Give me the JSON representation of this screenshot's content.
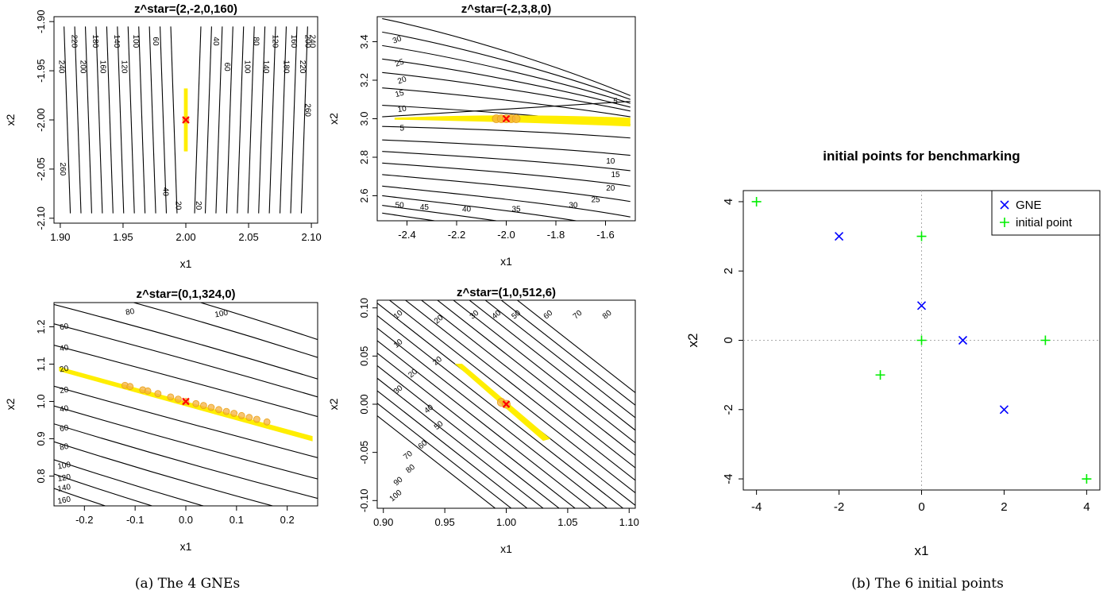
{
  "captions": {
    "a": "(a) The 4 GNEs",
    "b": "(b) The 6 initial points"
  },
  "chart_data": [
    {
      "id": "p1",
      "type": "contour",
      "title": "z^star=(2,-2,0,160)",
      "xlabel": "x1",
      "ylabel": "x2",
      "xlim": [
        1.895,
        2.105
      ],
      "ylim": [
        -2.105,
        -1.895
      ],
      "xticks": [
        1.9,
        1.95,
        2.0,
        2.05,
        2.1
      ],
      "xtick_labels": [
        "1.90",
        "1.95",
        "2.00",
        "2.05",
        "2.10"
      ],
      "yticks": [
        -2.1,
        -2.05,
        -2.0,
        -1.95,
        -1.9
      ],
      "ytick_labels": [
        "-2.10",
        "-2.05",
        "-2.00",
        "-1.95",
        "-1.90"
      ],
      "contour_labels": [
        {
          "text": "220",
          "x": 1.911,
          "y": -1.92,
          "rot": 90
        },
        {
          "text": "180",
          "x": 1.928,
          "y": -1.92,
          "rot": 90
        },
        {
          "text": "140",
          "x": 1.945,
          "y": -1.92,
          "rot": 90
        },
        {
          "text": "100",
          "x": 1.96,
          "y": -1.92,
          "rot": 90
        },
        {
          "text": "60",
          "x": 1.976,
          "y": -1.92,
          "rot": 90
        },
        {
          "text": "40",
          "x": 2.024,
          "y": -1.92,
          "rot": 90
        },
        {
          "text": "80",
          "x": 2.056,
          "y": -1.92,
          "rot": 90
        },
        {
          "text": "120",
          "x": 2.071,
          "y": -1.92,
          "rot": 90
        },
        {
          "text": "160",
          "x": 2.086,
          "y": -1.92,
          "rot": 90
        },
        {
          "text": "200",
          "x": 2.097,
          "y": -1.92,
          "rot": 90
        },
        {
          "text": "240",
          "x": 2.101,
          "y": -1.92,
          "rot": 90
        },
        {
          "text": "240",
          "x": 1.901,
          "y": -1.946,
          "rot": 90
        },
        {
          "text": "200",
          "x": 1.918,
          "y": -1.946,
          "rot": 90
        },
        {
          "text": "160",
          "x": 1.934,
          "y": -1.946,
          "rot": 90
        },
        {
          "text": "120",
          "x": 1.951,
          "y": -1.946,
          "rot": 90
        },
        {
          "text": "60",
          "x": 2.033,
          "y": -1.946,
          "rot": 90
        },
        {
          "text": "100",
          "x": 2.049,
          "y": -1.946,
          "rot": 90
        },
        {
          "text": "140",
          "x": 2.064,
          "y": -1.946,
          "rot": 90
        },
        {
          "text": "180",
          "x": 2.08,
          "y": -1.946,
          "rot": 90
        },
        {
          "text": "220",
          "x": 2.093,
          "y": -1.946,
          "rot": 90
        },
        {
          "text": "260",
          "x": 2.097,
          "y": -1.99,
          "rot": 90
        },
        {
          "text": "260",
          "x": 1.902,
          "y": -2.05,
          "rot": 90
        },
        {
          "text": "40",
          "x": 1.984,
          "y": -2.073,
          "rot": 90
        },
        {
          "text": "20",
          "x": 1.994,
          "y": -2.087,
          "rot": 90
        },
        {
          "text": "20",
          "x": 2.01,
          "y": -2.087,
          "rot": 90
        }
      ],
      "gne": {
        "x": 2.0,
        "y": -2.0
      },
      "initial_points": [
        {
          "x": 2.0,
          "y": -2.0
        }
      ]
    },
    {
      "id": "p2",
      "type": "contour",
      "title": "z^star=(-2,3,8,0)",
      "xlabel": "x1",
      "ylabel": "x2",
      "xlim": [
        -2.52,
        -1.48
      ],
      "ylim": [
        2.47,
        3.53
      ],
      "xticks": [
        -2.4,
        -2.2,
        -2.0,
        -1.8,
        -1.6
      ],
      "xtick_labels": [
        "-2.4",
        "-2.2",
        "-2.0",
        "-1.8",
        "-1.6"
      ],
      "yticks": [
        2.6,
        2.8,
        3.0,
        3.2,
        3.4
      ],
      "ytick_labels": [
        "2.6",
        "2.8",
        "3.0",
        "3.2",
        "3.4"
      ],
      "contour_labels": [
        {
          "text": "30",
          "x": -2.44,
          "y": 3.41,
          "rot": -20
        },
        {
          "text": "25",
          "x": -2.43,
          "y": 3.29,
          "rot": -20
        },
        {
          "text": "20",
          "x": -2.42,
          "y": 3.2,
          "rot": -20
        },
        {
          "text": "15",
          "x": -2.43,
          "y": 3.13,
          "rot": -15
        },
        {
          "text": "10",
          "x": -2.42,
          "y": 3.05,
          "rot": -10
        },
        {
          "text": "5",
          "x": -1.56,
          "y": 3.09,
          "rot": 0
        },
        {
          "text": "5",
          "x": -2.42,
          "y": 2.95,
          "rot": 0
        },
        {
          "text": "10",
          "x": -1.58,
          "y": 2.78,
          "rot": 0
        },
        {
          "text": "15",
          "x": -1.56,
          "y": 2.71,
          "rot": 0
        },
        {
          "text": "20",
          "x": -1.58,
          "y": 2.64,
          "rot": 0
        },
        {
          "text": "25",
          "x": -1.64,
          "y": 2.58,
          "rot": 0
        },
        {
          "text": "30",
          "x": -1.73,
          "y": 2.55,
          "rot": 0
        },
        {
          "text": "35",
          "x": -1.96,
          "y": 2.53,
          "rot": 0
        },
        {
          "text": "40",
          "x": -2.16,
          "y": 2.53,
          "rot": 0
        },
        {
          "text": "45",
          "x": -2.33,
          "y": 2.54,
          "rot": 0
        },
        {
          "text": "50",
          "x": -2.43,
          "y": 2.55,
          "rot": 0
        }
      ],
      "gne": {
        "x": -2.0,
        "y": 3.0
      },
      "initial_points": [
        {
          "x": -2.04,
          "y": 3.0
        },
        {
          "x": -2.02,
          "y": 3.0
        },
        {
          "x": -2.0,
          "y": 3.0
        },
        {
          "x": -1.98,
          "y": 3.0
        },
        {
          "x": -1.96,
          "y": 3.0
        }
      ]
    },
    {
      "id": "p3",
      "type": "contour",
      "title": "z^star=(0,1,324,0)",
      "xlabel": "x1",
      "ylabel": "x2",
      "xlim": [
        -0.26,
        0.26
      ],
      "ylim": [
        0.72,
        1.265
      ],
      "xticks": [
        -0.2,
        -0.1,
        0.0,
        0.1,
        0.2
      ],
      "xtick_labels": [
        "-0.2",
        "-0.1",
        "0.0",
        "0.1",
        "0.2"
      ],
      "yticks": [
        0.8,
        0.9,
        1.0,
        1.1,
        1.2
      ],
      "ytick_labels": [
        "0.8",
        "0.9",
        "1.0",
        "1.1",
        "1.2"
      ],
      "contour_labels": [
        {
          "text": "60",
          "x": -0.24,
          "y": 1.2,
          "rot": -10
        },
        {
          "text": "80",
          "x": -0.11,
          "y": 1.24,
          "rot": -10
        },
        {
          "text": "100",
          "x": 0.07,
          "y": 1.235,
          "rot": -10
        },
        {
          "text": "40",
          "x": -0.24,
          "y": 1.143,
          "rot": -10
        },
        {
          "text": "20",
          "x": -0.24,
          "y": 1.087,
          "rot": -10
        },
        {
          "text": "20",
          "x": -0.24,
          "y": 1.03,
          "rot": -10
        },
        {
          "text": "40",
          "x": -0.24,
          "y": 0.98,
          "rot": -10
        },
        {
          "text": "60",
          "x": -0.24,
          "y": 0.928,
          "rot": -10
        },
        {
          "text": "80",
          "x": -0.24,
          "y": 0.878,
          "rot": -10
        },
        {
          "text": "100",
          "x": -0.24,
          "y": 0.828,
          "rot": -10
        },
        {
          "text": "120",
          "x": -0.24,
          "y": 0.795,
          "rot": -10
        },
        {
          "text": "140",
          "x": -0.24,
          "y": 0.768,
          "rot": -10
        },
        {
          "text": "160",
          "x": -0.24,
          "y": 0.735,
          "rot": -10
        }
      ],
      "gne": {
        "x": 0.0,
        "y": 1.0
      },
      "initial_points": [
        {
          "x": -0.12,
          "y": 1.043
        },
        {
          "x": -0.11,
          "y": 1.04
        },
        {
          "x": -0.085,
          "y": 1.031
        },
        {
          "x": -0.075,
          "y": 1.028
        },
        {
          "x": -0.055,
          "y": 1.021
        },
        {
          "x": -0.03,
          "y": 1.012
        },
        {
          "x": -0.015,
          "y": 1.006
        },
        {
          "x": 0.0,
          "y": 1.0
        },
        {
          "x": 0.02,
          "y": 0.994
        },
        {
          "x": 0.035,
          "y": 0.989
        },
        {
          "x": 0.05,
          "y": 0.984
        },
        {
          "x": 0.065,
          "y": 0.978
        },
        {
          "x": 0.08,
          "y": 0.973
        },
        {
          "x": 0.095,
          "y": 0.968
        },
        {
          "x": 0.11,
          "y": 0.962
        },
        {
          "x": 0.125,
          "y": 0.957
        },
        {
          "x": 0.14,
          "y": 0.952
        },
        {
          "x": 0.16,
          "y": 0.945
        }
      ]
    },
    {
      "id": "p4",
      "type": "contour",
      "title": "z^star=(1,0,512,6)",
      "xlabel": "x1",
      "ylabel": "x2",
      "xlim": [
        0.895,
        1.105
      ],
      "ylim": [
        -0.108,
        0.108
      ],
      "xticks": [
        0.9,
        0.95,
        1.0,
        1.05,
        1.1
      ],
      "xtick_labels": [
        "0.90",
        "0.95",
        "1.00",
        "1.05",
        "1.10"
      ],
      "yticks": [
        -0.1,
        -0.05,
        0.0,
        0.05,
        0.1
      ],
      "ytick_labels": [
        "-0.10",
        "-0.05",
        "0.00",
        "0.05",
        "0.10"
      ],
      "contour_labels": [
        {
          "text": "10",
          "x": 0.912,
          "y": 0.093,
          "rot": -40
        },
        {
          "text": "20",
          "x": 0.945,
          "y": 0.088,
          "rot": -40
        },
        {
          "text": "30",
          "x": 0.974,
          "y": 0.093,
          "rot": -40
        },
        {
          "text": "40",
          "x": 0.992,
          "y": 0.093,
          "rot": -40
        },
        {
          "text": "50",
          "x": 1.008,
          "y": 0.093,
          "rot": -40
        },
        {
          "text": "60",
          "x": 1.034,
          "y": 0.093,
          "rot": -40
        },
        {
          "text": "70",
          "x": 1.058,
          "y": 0.093,
          "rot": -40
        },
        {
          "text": "80",
          "x": 1.082,
          "y": 0.093,
          "rot": -40
        },
        {
          "text": "10",
          "x": 0.912,
          "y": 0.063,
          "rot": -40
        },
        {
          "text": "20",
          "x": 0.944,
          "y": 0.045,
          "rot": -40
        },
        {
          "text": "20",
          "x": 0.924,
          "y": 0.032,
          "rot": -40
        },
        {
          "text": "30",
          "x": 0.912,
          "y": 0.015,
          "rot": -40
        },
        {
          "text": "40",
          "x": 0.937,
          "y": -0.005,
          "rot": -40
        },
        {
          "text": "50",
          "x": 0.945,
          "y": -0.022,
          "rot": -40
        },
        {
          "text": "60",
          "x": 0.932,
          "y": -0.042,
          "rot": -40
        },
        {
          "text": "70",
          "x": 0.92,
          "y": -0.053,
          "rot": -40
        },
        {
          "text": "80",
          "x": 0.922,
          "y": -0.067,
          "rot": -40
        },
        {
          "text": "90",
          "x": 0.912,
          "y": -0.08,
          "rot": -40
        },
        {
          "text": "100",
          "x": 0.91,
          "y": -0.095,
          "rot": -40
        }
      ],
      "gne": {
        "x": 1.0,
        "y": 0.0
      },
      "initial_points": [
        {
          "x": 0.996,
          "y": 0.002
        },
        {
          "x": 1.0,
          "y": 0.0
        }
      ]
    },
    {
      "id": "p5",
      "type": "scatter",
      "title": "initial points for benchmarking",
      "xlabel": "x1",
      "ylabel": "x2",
      "xlim": [
        -4.32,
        4.32
      ],
      "ylim": [
        -4.32,
        4.32
      ],
      "xticks": [
        -4,
        -2,
        0,
        2,
        4
      ],
      "xtick_labels": [
        "-4",
        "-2",
        "0",
        "2",
        "4"
      ],
      "yticks": [
        -4,
        -2,
        0,
        2,
        4
      ],
      "ytick_labels": [
        "-4",
        "-2",
        "0",
        "2",
        "4"
      ],
      "reference_lines": {
        "x": 0,
        "y": 0
      },
      "legend_position": "top-right",
      "series": [
        {
          "name": "GNE",
          "marker": "x",
          "color": "#0000ff",
          "points": [
            {
              "x": -2,
              "y": 3
            },
            {
              "x": 0,
              "y": 1
            },
            {
              "x": 1,
              "y": 0
            },
            {
              "x": 2,
              "y": -2
            }
          ]
        },
        {
          "name": "initial point",
          "marker": "+",
          "color": "#00ee00",
          "points": [
            {
              "x": -4,
              "y": 4
            },
            {
              "x": 0,
              "y": 3
            },
            {
              "x": 0,
              "y": 0
            },
            {
              "x": -1,
              "y": -1
            },
            {
              "x": 3,
              "y": 0
            },
            {
              "x": 4,
              "y": -4
            }
          ]
        }
      ]
    }
  ]
}
